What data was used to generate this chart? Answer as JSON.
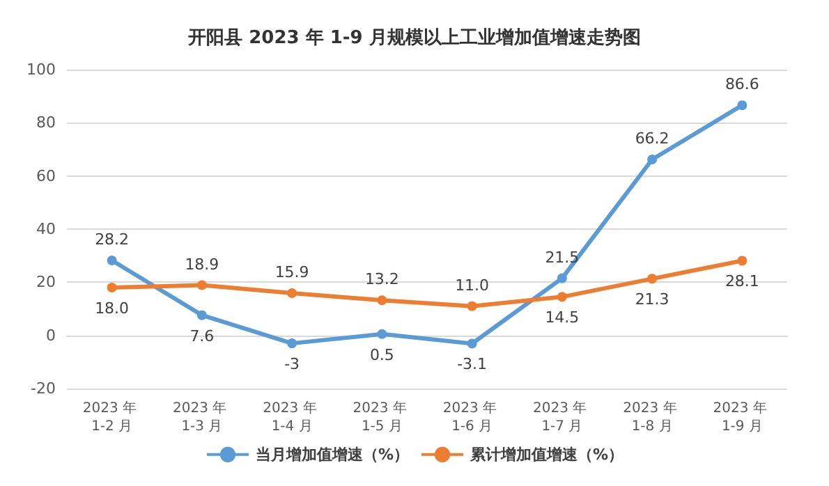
{
  "chart_data": {
    "type": "line",
    "title": "开阳县 2023 年 1-9 月规模以上工业增加值增速走势图",
    "categories": [
      "2023 年 1-2 月",
      "2023 年 1-3 月",
      "2023 年 1-4 月",
      "2023 年 1-5 月",
      "2023 年 1-6 月",
      "2023 年 1-7 月",
      "2023 年 1-8 月",
      "2023 年 1-9 月"
    ],
    "series": [
      {
        "name": "当月增加值增速（%）",
        "color": "#5b9bd5",
        "values": [
          28.2,
          7.6,
          -3,
          0.5,
          -3.1,
          21.5,
          66.2,
          86.6
        ],
        "value_labels": [
          "28.2",
          "7.6",
          "-3",
          "0.5",
          "-3.1",
          "21.5",
          "66.2",
          "86.6"
        ]
      },
      {
        "name": "累计增加值增速（%）",
        "color": "#ed7d31",
        "values": [
          18.0,
          18.9,
          15.9,
          13.2,
          11.0,
          14.5,
          21.3,
          28.1
        ],
        "value_labels": [
          "18.0",
          "18.9",
          "15.9",
          "13.2",
          "11.0",
          "14.5",
          "21.3",
          "28.1"
        ]
      }
    ],
    "ylim": [
      -20,
      100
    ],
    "yticks": [
      -20,
      0,
      20,
      40,
      60,
      80,
      100
    ],
    "grid": "y",
    "legend": "bottom",
    "marker": "circle",
    "line_style": "solid"
  }
}
